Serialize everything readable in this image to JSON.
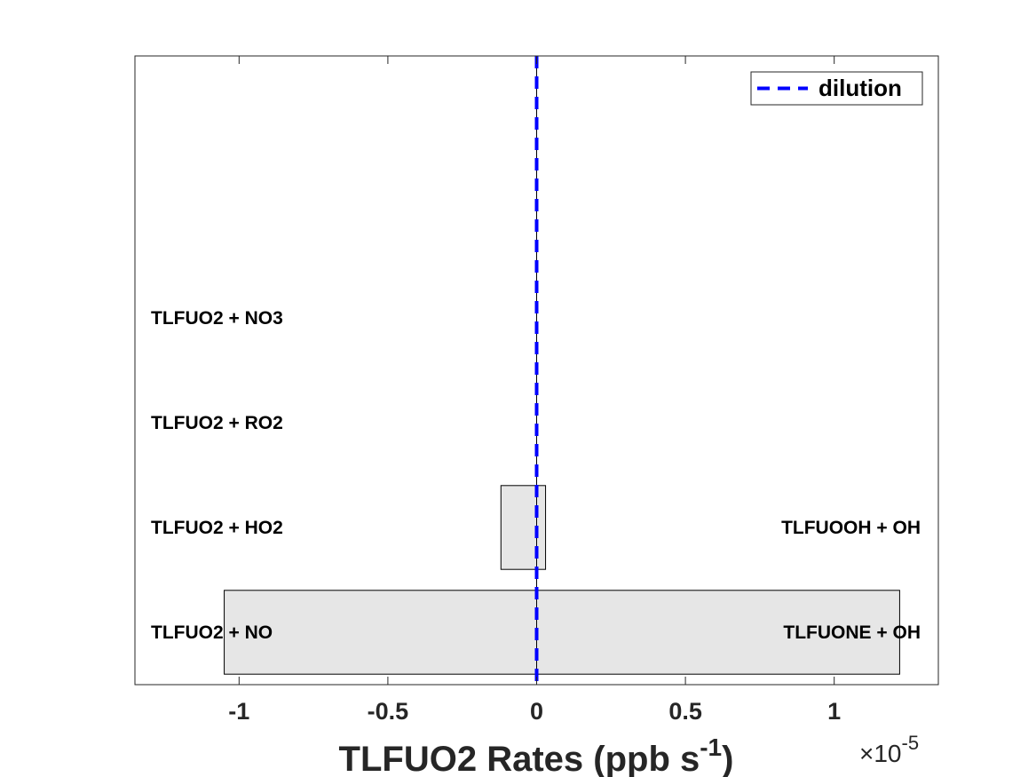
{
  "chart_data": {
    "type": "bar",
    "orientation": "horizontal-stacked",
    "xlabel_main": "TLFUO2 Rates (ppb s",
    "xlabel_sup": "-1",
    "xlabel_close": ")",
    "x_multiplier": "×10",
    "x_multiplier_exp": "-5",
    "xlim": [
      -1.35,
      1.35
    ],
    "xticks": [
      -1,
      -0.5,
      0,
      0.5,
      1
    ],
    "xtick_labels": [
      "-1",
      "-0.5",
      "0",
      "0.5",
      "1"
    ],
    "ylim": [
      0.5,
      6.5
    ],
    "grid": false,
    "legend": {
      "position": "top-right",
      "entries": [
        "dilution"
      ],
      "color": "#0000ff",
      "style": "dashed"
    },
    "bar_color": "#e6e6e6",
    "rows": [
      {
        "y": 1,
        "loss_label": "TLFUO2 + NO",
        "prod_label": "TLFUONE + OH",
        "loss": -1.05,
        "prod": 1.22
      },
      {
        "y": 2,
        "loss_label": "TLFUO2 + HO2",
        "prod_label": "TLFUOOH + OH",
        "loss": -0.12,
        "prod": 0.03
      },
      {
        "y": 3,
        "loss_label": "TLFUO2 + RO2",
        "prod_label": "",
        "loss": 0,
        "prod": 0
      },
      {
        "y": 4,
        "loss_label": "TLFUO2 + NO3",
        "prod_label": "",
        "loss": 0,
        "prod": 0
      }
    ],
    "dilution_x": 0
  }
}
